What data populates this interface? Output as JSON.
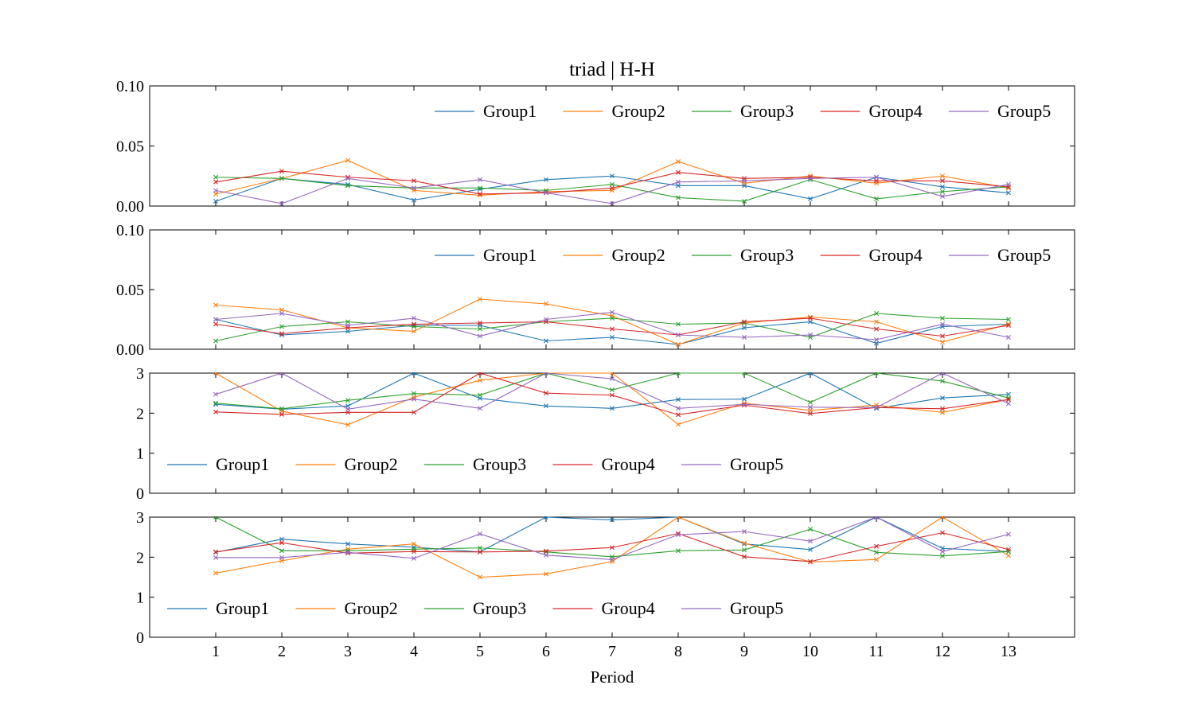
{
  "chart_data": {
    "type": "line",
    "title": "triad | H-H",
    "xlabel": "Period",
    "x": [
      1,
      2,
      3,
      4,
      5,
      6,
      7,
      8,
      9,
      10,
      11,
      12,
      13
    ],
    "xlim": [
      0,
      14
    ],
    "colors": [
      "#1f77b4",
      "#ff7f0e",
      "#2ca02c",
      "#d62728",
      "#9467bd"
    ],
    "legend": [
      "Group1",
      "Group2",
      "Group3",
      "Group4",
      "Group5"
    ],
    "panels": [
      {
        "ylim": [
          0,
          0.1
        ],
        "yticks": [
          "0.00",
          "0.05",
          "0.10"
        ],
        "ytick_values": [
          0,
          0.05,
          0.1
        ],
        "legend_position": "top-right",
        "series": [
          {
            "name": "Group1",
            "values": [
              0.004,
              0.023,
              0.018,
              0.005,
              0.014,
              0.022,
              0.025,
              0.017,
              0.017,
              0.006,
              0.024,
              0.016,
              0.011
            ]
          },
          {
            "name": "Group2",
            "values": [
              0.01,
              0.023,
              0.038,
              0.013,
              0.009,
              0.012,
              0.013,
              0.037,
              0.019,
              0.025,
              0.019,
              0.025,
              0.015
            ]
          },
          {
            "name": "Group3",
            "values": [
              0.024,
              0.023,
              0.017,
              0.015,
              0.015,
              0.013,
              0.018,
              0.007,
              0.004,
              0.022,
              0.006,
              0.012,
              0.016
            ]
          },
          {
            "name": "Group4",
            "values": [
              0.02,
              0.029,
              0.024,
              0.021,
              0.01,
              0.011,
              0.015,
              0.028,
              0.023,
              0.024,
              0.021,
              0.021,
              0.016
            ]
          },
          {
            "name": "Group5",
            "values": [
              0.013,
              0.002,
              0.023,
              0.015,
              0.022,
              0.011,
              0.002,
              0.02,
              0.021,
              0.023,
              0.024,
              0.008,
              0.018
            ]
          }
        ]
      },
      {
        "ylim": [
          0,
          0.1
        ],
        "yticks": [
          "0.00",
          "0.05",
          "0.10"
        ],
        "ytick_values": [
          0,
          0.05,
          0.1
        ],
        "legend_position": "top-right",
        "series": [
          {
            "name": "Group1",
            "values": [
              0.025,
              0.012,
              0.015,
              0.02,
              0.02,
              0.007,
              0.01,
              0.004,
              0.018,
              0.023,
              0.005,
              0.019,
              0.021
            ]
          },
          {
            "name": "Group2",
            "values": [
              0.037,
              0.033,
              0.018,
              0.015,
              0.042,
              0.038,
              0.028,
              0.004,
              0.022,
              0.027,
              0.023,
              0.006,
              0.021
            ]
          },
          {
            "name": "Group3",
            "values": [
              0.007,
              0.019,
              0.023,
              0.019,
              0.017,
              0.023,
              0.026,
              0.021,
              0.022,
              0.01,
              0.03,
              0.026,
              0.025
            ]
          },
          {
            "name": "Group4",
            "values": [
              0.021,
              0.013,
              0.018,
              0.021,
              0.022,
              0.023,
              0.017,
              0.012,
              0.023,
              0.026,
              0.017,
              0.011,
              0.02
            ]
          },
          {
            "name": "Group5",
            "values": [
              0.025,
              0.03,
              0.02,
              0.026,
              0.011,
              0.025,
              0.031,
              0.012,
              0.01,
              0.012,
              0.008,
              0.021,
              0.01
            ]
          }
        ]
      },
      {
        "ylim": [
          0,
          3
        ],
        "yticks": [
          "0",
          "1",
          "2",
          "3"
        ],
        "ytick_values": [
          0,
          1,
          2,
          3
        ],
        "legend_position": "lower-left",
        "series": [
          {
            "name": "Group1",
            "values": [
              2.22,
              2.1,
              2.18,
              3.0,
              2.37,
              2.18,
              2.12,
              2.34,
              2.35,
              3.0,
              2.12,
              2.38,
              2.47
            ]
          },
          {
            "name": "Group2",
            "values": [
              3.0,
              2.05,
              1.71,
              2.4,
              2.82,
              3.0,
              3.0,
              1.72,
              2.25,
              2.07,
              2.2,
              2.02,
              2.34
            ]
          },
          {
            "name": "Group3",
            "values": [
              2.25,
              2.11,
              2.32,
              2.49,
              2.45,
              3.0,
              2.58,
              3.0,
              3.0,
              2.27,
              3.0,
              2.8,
              2.38
            ]
          },
          {
            "name": "Group4",
            "values": [
              2.03,
              1.97,
              2.02,
              2.02,
              3.0,
              2.5,
              2.45,
              1.96,
              2.2,
              1.99,
              2.14,
              2.11,
              2.34
            ]
          },
          {
            "name": "Group5",
            "values": [
              2.47,
              3.0,
              2.1,
              2.35,
              2.12,
              3.0,
              2.86,
              2.12,
              2.22,
              2.15,
              2.14,
              3.0,
              2.24
            ]
          }
        ]
      },
      {
        "ylim": [
          0,
          3
        ],
        "yticks": [
          "0",
          "1",
          "2",
          "3"
        ],
        "ytick_values": [
          0,
          1,
          2,
          3
        ],
        "legend_position": "lower-left",
        "series": [
          {
            "name": "Group1",
            "values": [
              2.12,
              2.45,
              2.33,
              2.25,
              2.13,
              3.0,
              2.93,
              3.0,
              2.33,
              2.19,
              3.0,
              2.22,
              2.14
            ]
          },
          {
            "name": "Group2",
            "values": [
              1.6,
              1.91,
              2.2,
              2.33,
              1.5,
              1.58,
              1.89,
              3.0,
              2.35,
              1.88,
              1.94,
              3.0,
              2.04
            ]
          },
          {
            "name": "Group3",
            "values": [
              3.0,
              2.16,
              2.16,
              2.2,
              2.23,
              2.13,
              2.01,
              2.16,
              2.18,
              2.7,
              2.12,
              2.03,
              2.14
            ]
          },
          {
            "name": "Group4",
            "values": [
              2.13,
              2.36,
              2.1,
              2.14,
              2.13,
              2.15,
              2.24,
              2.59,
              2.01,
              1.89,
              2.27,
              2.61,
              2.19
            ]
          },
          {
            "name": "Group5",
            "values": [
              1.99,
              1.99,
              2.12,
              1.97,
              2.58,
              2.05,
              1.94,
              2.56,
              2.64,
              2.4,
              3.0,
              2.14,
              2.57
            ]
          }
        ]
      }
    ]
  }
}
